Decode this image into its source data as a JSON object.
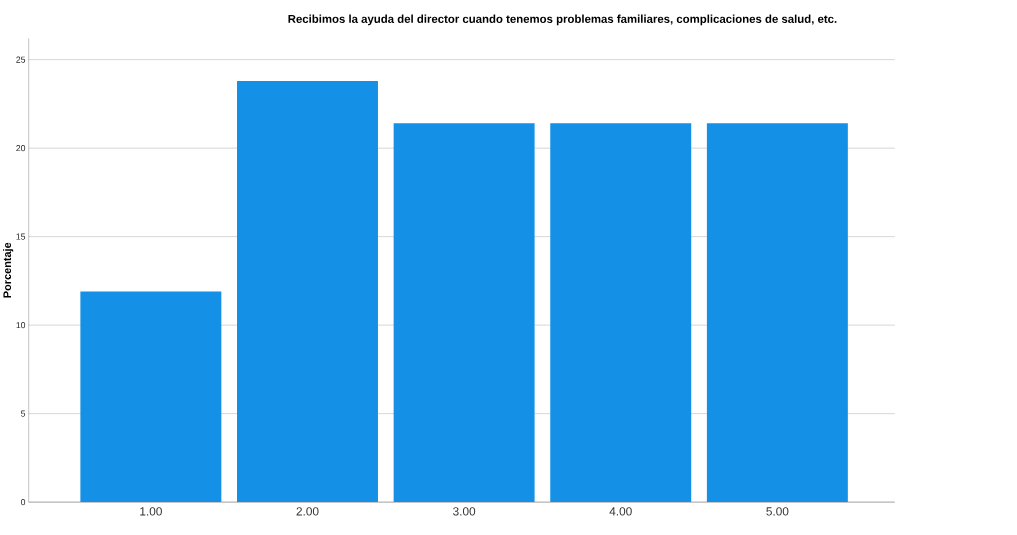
{
  "chart_data": {
    "type": "bar",
    "title": "Recibimos la ayuda del director cuando tenemos problemas familiares, complicaciones de salud, etc.",
    "ylabel": "Porcentaje",
    "categories": [
      "1.00",
      "2.00",
      "3.00",
      "4.00",
      "5.00"
    ],
    "values": [
      11.9,
      23.8,
      21.4,
      21.4,
      21.4
    ],
    "color": "#1490e6",
    "ylim": [
      0,
      26.2
    ],
    "yticks": [
      0,
      5,
      10,
      15,
      20,
      25
    ],
    "grid": "y"
  }
}
